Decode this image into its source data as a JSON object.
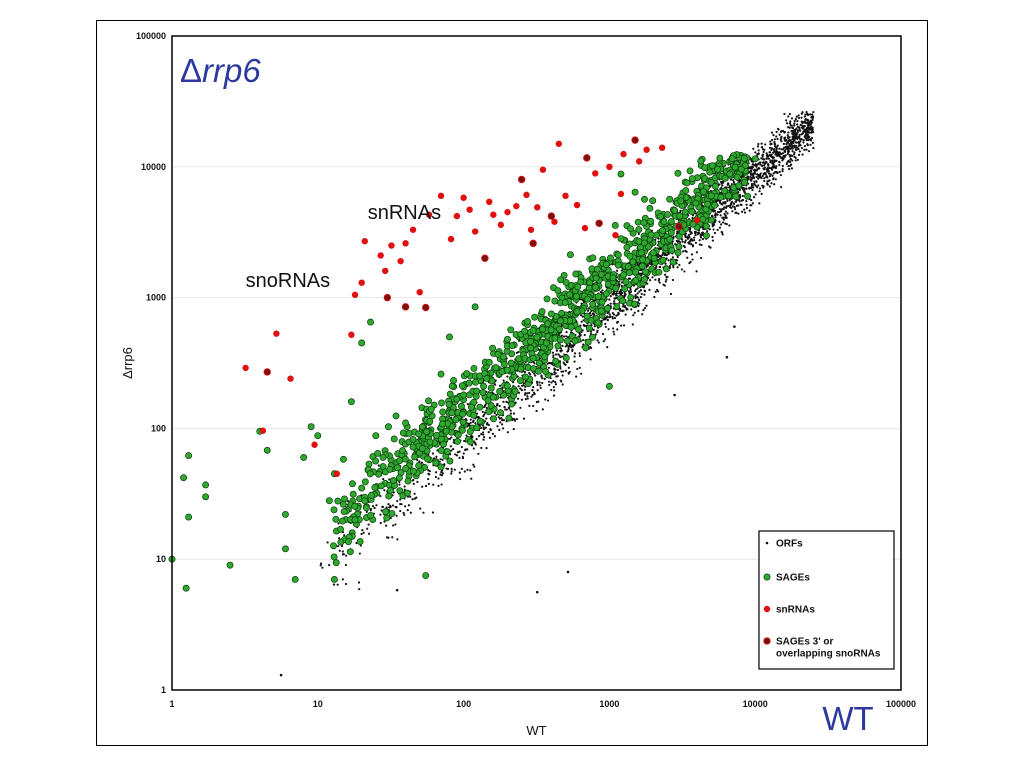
{
  "chart_data": {
    "type": "scatter",
    "title": "",
    "corner_label": "rrp6",
    "corner_label_prefix": "Δ",
    "corner_label_right": "WT",
    "xlabel": "WT",
    "ylabel": "Δrrp6",
    "x_scale": "log",
    "y_scale": "log",
    "xlim": [
      1,
      100000
    ],
    "ylim": [
      1,
      100000
    ],
    "xticks": [
      "1",
      "10",
      "100",
      "1000",
      "10000",
      "100000"
    ],
    "yticks": [
      "1",
      "10",
      "100",
      "1000",
      "10000",
      "100000"
    ],
    "grid": true,
    "legend_position": "bottom-right",
    "colors": {
      "ORFs": "#111111",
      "SAGEs": "#2ea82e",
      "snRNAs": "#e01010",
      "overlap": "#7a1010"
    },
    "annotations": [
      {
        "text": "snRNAs",
        "x": 22,
        "y": 4000
      },
      {
        "text": "snoRNAs",
        "x": 3.2,
        "y": 1200
      }
    ],
    "series": [
      {
        "name": "ORFs",
        "marker": "dot",
        "distribution": "dense cloud along diagonal, approx. y ≈ x from 10 to 25000, spread ±0.5 decades",
        "values": [
          [
            5.6,
            1.3
          ],
          [
            35,
            5.8
          ],
          [
            320,
            5.6
          ],
          [
            520,
            8
          ],
          [
            2800,
            180
          ],
          [
            6400,
            350
          ],
          [
            7200,
            600
          ],
          [
            23000,
            25000
          ],
          [
            18000,
            18000
          ],
          [
            9500,
            10000
          ]
        ]
      },
      {
        "name": "SAGEs",
        "marker": "circle",
        "values": [
          [
            1,
            10
          ],
          [
            1.2,
            42
          ],
          [
            1.25,
            6
          ],
          [
            1.3,
            62
          ],
          [
            1.3,
            21
          ],
          [
            1.7,
            37
          ],
          [
            1.7,
            30
          ],
          [
            2.5,
            9
          ],
          [
            4,
            95
          ],
          [
            4.5,
            68
          ],
          [
            6,
            22
          ],
          [
            6,
            12
          ],
          [
            7,
            7
          ],
          [
            8,
            60
          ],
          [
            9,
            103
          ],
          [
            10,
            88
          ],
          [
            12,
            28
          ],
          [
            13,
            45
          ],
          [
            13,
            7
          ],
          [
            15,
            58
          ],
          [
            17,
            160
          ],
          [
            18,
            20
          ],
          [
            20,
            35
          ],
          [
            20,
            450
          ],
          [
            23,
            650
          ],
          [
            25,
            88
          ],
          [
            28,
            60
          ],
          [
            33,
            40
          ],
          [
            40,
            110
          ],
          [
            45,
            72
          ],
          [
            55,
            7.5
          ],
          [
            60,
            140
          ],
          [
            70,
            260
          ],
          [
            80,
            500
          ],
          [
            100,
            180
          ],
          [
            120,
            850
          ],
          [
            150,
            320
          ],
          [
            200,
            480
          ],
          [
            300,
            560
          ],
          [
            400,
            750
          ],
          [
            600,
            780
          ],
          [
            800,
            1200
          ],
          [
            1000,
            210
          ],
          [
            1200,
            8800
          ],
          [
            1500,
            6400
          ],
          [
            2000,
            2200
          ],
          [
            3000,
            3500
          ],
          [
            5000,
            6000
          ],
          [
            10000,
            11500
          ]
        ]
      },
      {
        "name": "snRNAs",
        "marker": "circle",
        "values": [
          [
            3.2,
            290
          ],
          [
            4.2,
            96
          ],
          [
            5.2,
            530
          ],
          [
            6.5,
            240
          ],
          [
            9.5,
            75
          ],
          [
            13.5,
            45
          ],
          [
            17,
            520
          ],
          [
            18,
            1050
          ],
          [
            20,
            1300
          ],
          [
            21,
            2700
          ],
          [
            27,
            2100
          ],
          [
            29,
            1600
          ],
          [
            32,
            2500
          ],
          [
            37,
            1900
          ],
          [
            40,
            2600
          ],
          [
            45,
            3300
          ],
          [
            50,
            1100
          ],
          [
            58,
            4300
          ],
          [
            70,
            6000
          ],
          [
            82,
            2800
          ],
          [
            90,
            4200
          ],
          [
            100,
            5800
          ],
          [
            110,
            4700
          ],
          [
            120,
            3200
          ],
          [
            150,
            5400
          ],
          [
            160,
            4300
          ],
          [
            180,
            3600
          ],
          [
            200,
            4500
          ],
          [
            230,
            5000
          ],
          [
            270,
            6100
          ],
          [
            290,
            3300
          ],
          [
            320,
            4900
          ],
          [
            350,
            9500
          ],
          [
            420,
            3800
          ],
          [
            450,
            15000
          ],
          [
            500,
            6000
          ],
          [
            600,
            5100
          ],
          [
            680,
            3400
          ],
          [
            800,
            8900
          ],
          [
            1000,
            10000
          ],
          [
            1100,
            3000
          ],
          [
            1250,
            12500
          ],
          [
            1500,
            16000
          ],
          [
            1600,
            11000
          ],
          [
            1800,
            13500
          ],
          [
            2300,
            14000
          ],
          [
            4000,
            3900
          ],
          [
            1200,
            6200
          ]
        ]
      },
      {
        "name": "SAGEs 3' or overlapping snoRNAs",
        "marker": "circle",
        "values": [
          [
            4.5,
            270
          ],
          [
            30,
            1000
          ],
          [
            40,
            850
          ],
          [
            55,
            840
          ],
          [
            140,
            2000
          ],
          [
            250,
            8000
          ],
          [
            300,
            2600
          ],
          [
            400,
            4200
          ],
          [
            700,
            11700
          ],
          [
            850,
            3700
          ],
          [
            1500,
            16000
          ],
          [
            3000,
            3500
          ]
        ]
      }
    ],
    "legend": [
      {
        "label": "ORFs",
        "marker": "dot"
      },
      {
        "label": "SAGEs",
        "marker": "circle"
      },
      {
        "label": "snRNAs",
        "marker": "circle"
      },
      {
        "label": "SAGEs 3' or overlapping snoRNAs",
        "marker": "circle"
      }
    ]
  }
}
